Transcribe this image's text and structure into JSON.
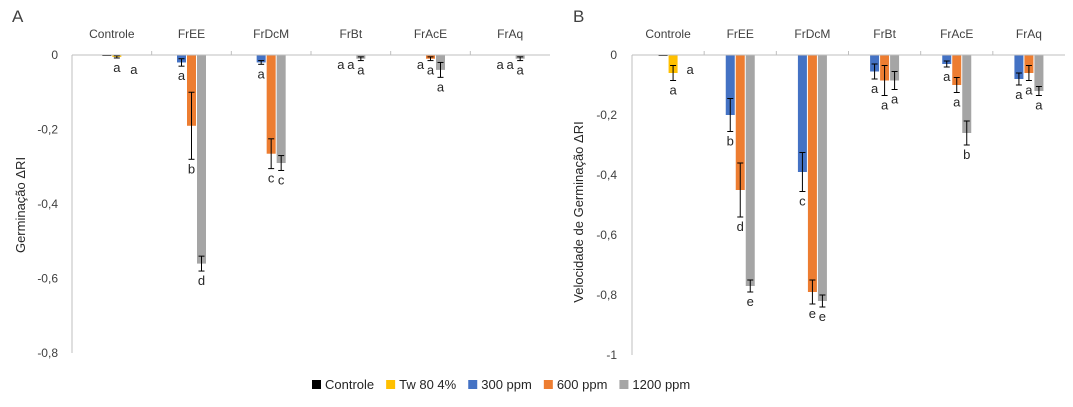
{
  "legend": [
    {
      "name": "Controle",
      "color": "#000000"
    },
    {
      "name": "Tw 80 4%",
      "color": "#FFC000"
    },
    {
      "name": "300 ppm",
      "color": "#4472C4"
    },
    {
      "name": "600 ppm",
      "color": "#ED7D31"
    },
    {
      "name": "1200 ppm",
      "color": "#A5A5A5"
    }
  ],
  "chart_data": [
    {
      "type": "bar",
      "panel": "A",
      "ylabel": "Germinação ΔRI",
      "ylim": [
        -0.8,
        0
      ],
      "yticks": [
        "0",
        "-0,2",
        "-0,4",
        "-0,6",
        "-0,8"
      ],
      "ytick_values": [
        0,
        -0.2,
        -0.4,
        -0.6,
        -0.8
      ],
      "categories": [
        "Controle",
        "FrEE",
        "FrDcM",
        "FrBt",
        "FrAcE",
        "FrAq"
      ],
      "series": [
        {
          "name": "Controle",
          "color": "#000000",
          "values": [
            0,
            null,
            null,
            null,
            null,
            null
          ],
          "errors": [
            0,
            null,
            null,
            null,
            null,
            null
          ],
          "labels": [
            "",
            "",
            "",
            "",
            "",
            ""
          ]
        },
        {
          "name": "Tw 80 4%",
          "color": "#FFC000",
          "values": [
            -0.005,
            null,
            null,
            null,
            null,
            null
          ],
          "errors": [
            0.003,
            null,
            null,
            null,
            null,
            null
          ],
          "labels": [
            "a",
            "",
            "",
            "",
            "",
            ""
          ]
        },
        {
          "name": "300 ppm",
          "color": "#4472C4",
          "values": [
            null,
            -0.02,
            -0.02,
            0,
            0,
            0
          ],
          "errors": [
            null,
            0.01,
            0.005,
            0,
            0,
            0
          ],
          "labels": [
            "",
            "a",
            "a",
            "a",
            "a",
            "a"
          ]
        },
        {
          "name": "600 ppm",
          "color": "#ED7D31",
          "values": [
            null,
            -0.19,
            -0.265,
            0,
            -0.01,
            0
          ],
          "errors": [
            null,
            0.09,
            0.04,
            0,
            0.005,
            0
          ],
          "labels": [
            "",
            "b",
            "c",
            "a",
            "a",
            "a"
          ]
        },
        {
          "name": "1200 ppm",
          "color": "#A5A5A5",
          "values": [
            null,
            -0.56,
            -0.29,
            -0.01,
            -0.04,
            -0.01
          ],
          "errors": [
            null,
            0.02,
            0.02,
            0.005,
            0.02,
            0.005
          ],
          "labels": [
            "",
            "d",
            "c",
            "a",
            "a",
            "a"
          ]
        }
      ],
      "control_extra_labels": [
        "a"
      ]
    },
    {
      "type": "bar",
      "panel": "B",
      "ylabel": "Velocidade de Germinação ΔRI",
      "ylim": [
        -1,
        0
      ],
      "yticks": [
        "0",
        "-0,2",
        "-0,4",
        "-0,6",
        "-0,8",
        "-1"
      ],
      "ytick_values": [
        0,
        -0.2,
        -0.4,
        -0.6,
        -0.8,
        -1
      ],
      "categories": [
        "Controle",
        "FrEE",
        "FrDcM",
        "FrBt",
        "FrAcE",
        "FrAq"
      ],
      "series": [
        {
          "name": "Controle",
          "color": "#000000",
          "values": [
            0,
            null,
            null,
            null,
            null,
            null
          ],
          "errors": [
            0,
            null,
            null,
            null,
            null,
            null
          ],
          "labels": [
            "",
            "",
            "",
            "",
            "",
            ""
          ]
        },
        {
          "name": "Tw 80 4%",
          "color": "#FFC000",
          "values": [
            -0.06,
            null,
            null,
            null,
            null,
            null
          ],
          "errors": [
            0.025,
            null,
            null,
            null,
            null,
            null
          ],
          "labels": [
            "a",
            "",
            "",
            "",
            "",
            ""
          ]
        },
        {
          "name": "300 ppm",
          "color": "#4472C4",
          "values": [
            null,
            -0.2,
            -0.39,
            -0.055,
            -0.03,
            -0.08
          ],
          "errors": [
            null,
            0.055,
            0.065,
            0.025,
            0.01,
            0.02
          ],
          "labels": [
            "",
            "b",
            "c",
            "a",
            "a",
            "a"
          ]
        },
        {
          "name": "600 ppm",
          "color": "#ED7D31",
          "values": [
            null,
            -0.45,
            -0.79,
            -0.085,
            -0.1,
            -0.06
          ],
          "errors": [
            null,
            0.09,
            0.04,
            0.05,
            0.025,
            0.025
          ],
          "labels": [
            "",
            "d",
            "e",
            "a",
            "a",
            "a"
          ]
        },
        {
          "name": "1200 ppm",
          "color": "#A5A5A5",
          "values": [
            null,
            -0.77,
            -0.82,
            -0.085,
            -0.26,
            -0.12
          ],
          "errors": [
            null,
            0.02,
            0.02,
            0.03,
            0.04,
            0.015
          ],
          "labels": [
            "",
            "e",
            "e",
            "a",
            "b",
            "a"
          ]
        }
      ],
      "control_extra_labels": [
        "a"
      ]
    }
  ]
}
